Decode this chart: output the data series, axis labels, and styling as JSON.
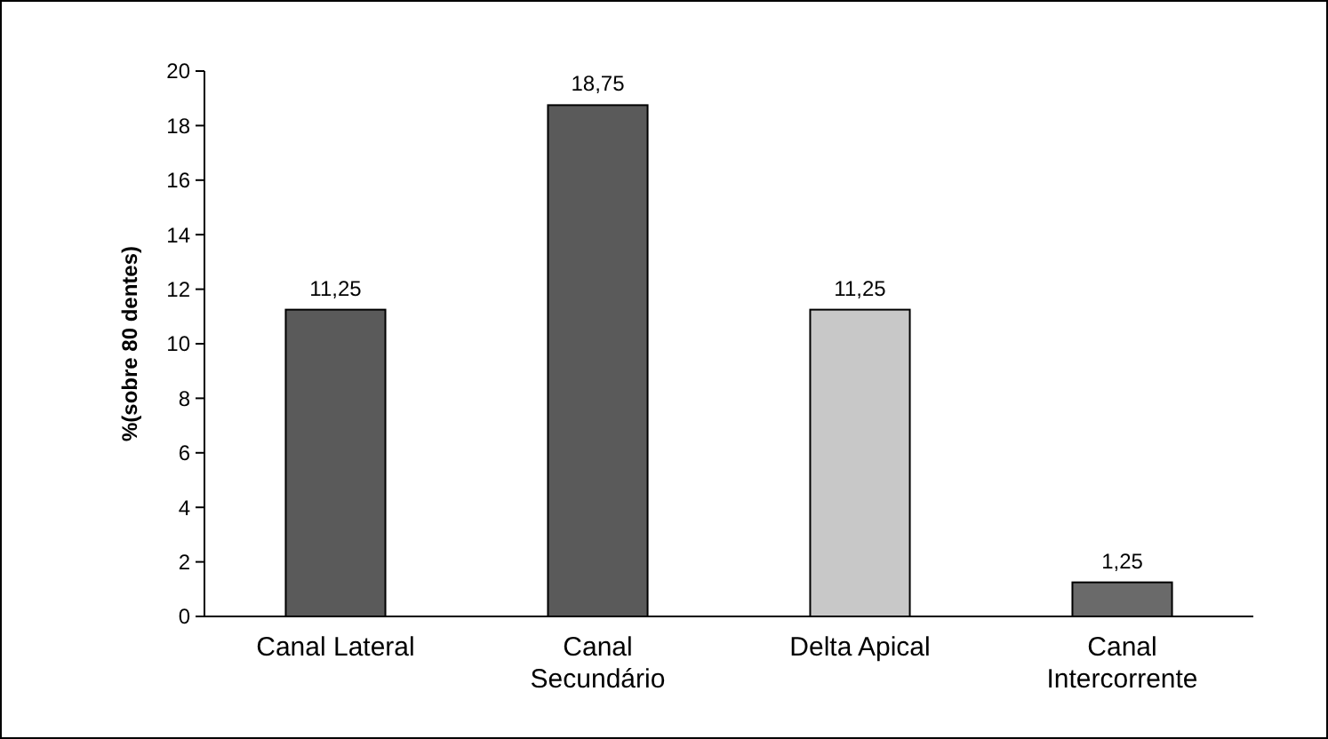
{
  "chart_data": {
    "type": "bar",
    "ylabel": "%(sobre 80 dentes)",
    "categories": [
      "Canal Lateral",
      "Canal Secundário",
      "Delta Apical",
      "Canal Intercorrente"
    ],
    "values": [
      11.25,
      18.75,
      11.25,
      1.25
    ],
    "colors": [
      "#5a5a5a",
      "#5a5a5a",
      "#c8c8c8",
      "#6a6a6a"
    ],
    "value_labels": [
      "11,25",
      "18,75",
      "11,25",
      "1,25"
    ],
    "ylim": [
      0,
      20
    ],
    "yticks": [
      0,
      2,
      4,
      6,
      8,
      10,
      12,
      14,
      16,
      18,
      20
    ],
    "grid": false
  }
}
